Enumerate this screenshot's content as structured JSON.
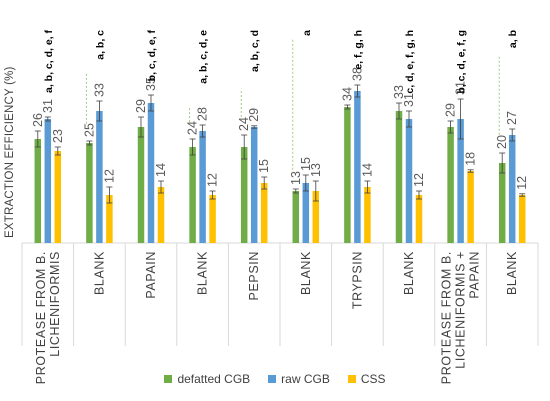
{
  "chart_data": {
    "type": "bar",
    "title": "",
    "ylabel": "EXTRACTION EFFICIENCY (%)",
    "xlabel": "",
    "ylim": [
      0,
      55
    ],
    "legend_position": "bottom",
    "categories": [
      [
        "PROTEASE FROM B.",
        "LICHENIFORMIS"
      ],
      [
        "BLANK"
      ],
      [
        "PAPAIN"
      ],
      [
        "BLANK"
      ],
      [
        "PEPSIN"
      ],
      [
        "BLANK"
      ],
      [
        "TRYPSIN"
      ],
      [
        "BLANK"
      ],
      [
        "PROTEASE FROM B.",
        "LICHENIFORMIS +",
        "PAPAIN"
      ],
      [
        "BLANK"
      ]
    ],
    "series": [
      {
        "name": "defatted CGB",
        "color": "#70ad47",
        "values": [
          26,
          25,
          29,
          24,
          24,
          13,
          34,
          33,
          29,
          20
        ],
        "errors": [
          2,
          0.5,
          2.5,
          2,
          3,
          0.5,
          0.5,
          2,
          1.5,
          2.5
        ]
      },
      {
        "name": "raw CGB",
        "color": "#5b9bd5",
        "values": [
          31,
          33,
          35,
          28,
          29,
          15,
          38,
          31,
          31,
          27
        ],
        "errors": [
          0.5,
          2.5,
          2,
          1.5,
          0.3,
          2,
          1.5,
          2,
          5,
          1.5
        ]
      },
      {
        "name": "CSS",
        "color": "#ffc000",
        "values": [
          23,
          12,
          14,
          12,
          15,
          13,
          14,
          12,
          18,
          12
        ],
        "errors": [
          1,
          2,
          1.5,
          1,
          1.5,
          2.5,
          1.5,
          1,
          0.3,
          0.3
        ]
      }
    ],
    "significance": [
      "a, b, c, d, e, f",
      "a, b, c",
      "b, c, d, e, f",
      "a, b, c, d, e",
      "a, b, c, d",
      "a",
      "e, f, g, h",
      "c, d, e, f, g, h",
      "b, c, d, e, f, g",
      "a, b"
    ]
  }
}
